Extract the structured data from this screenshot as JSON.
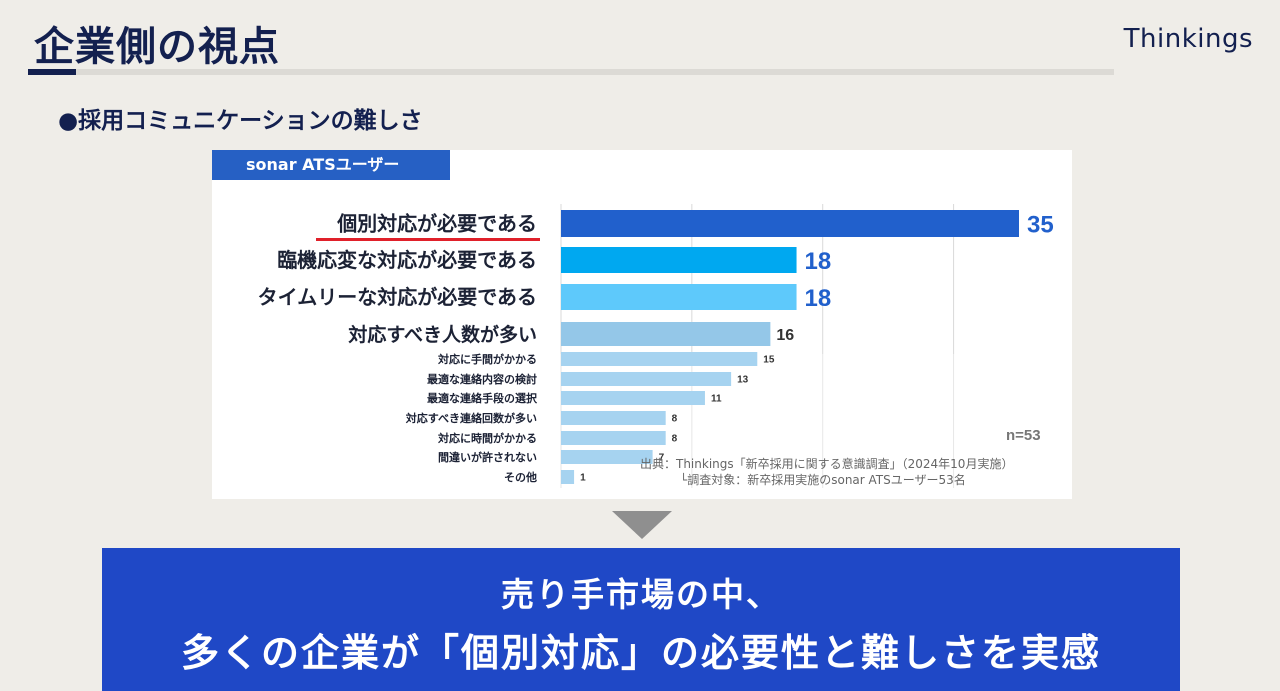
{
  "header": {
    "title": "企業側の視点",
    "brand": "Thinkings"
  },
  "section": {
    "subtitle": "●採用コミュニケーションの難しさ"
  },
  "chart_panel": {
    "tag": "sonar ATSユーザー",
    "sample_size": "n=53",
    "source_line1": "出典：Thinkings「新卒採用に関する意識調査」（2024年10月実施）",
    "source_line2": "└調査対象：新卒採用実施のsonar ATSユーザー53名"
  },
  "chart_data": {
    "type": "bar",
    "orientation": "horizontal",
    "categories": [
      "個別対応が必要である",
      "臨機応変な対応が必要である",
      "タイムリーな対応が必要である",
      "対応すべき人数が多い",
      "対応に手間がかかる",
      "最適な連絡内容の検討",
      "最適な連絡手段の選択",
      "対応すべき連絡回数が多い",
      "対応に時間がかかる",
      "間違いが許されない",
      "その他"
    ],
    "values": [
      35,
      18,
      18,
      16,
      15,
      13,
      11,
      8,
      8,
      7,
      1
    ],
    "xlim": [
      0,
      40
    ],
    "grid": true,
    "highlight_category": "個別対応が必要である",
    "colors": {
      "top1": "#2160cc",
      "top2": "#00a8f0",
      "top3": "#5ec9fb",
      "top4": "#94c7e8",
      "rest": "#a6d3f0",
      "underline": "#e0202a",
      "value_major": "#2160cc",
      "value_minor": "#333333"
    }
  },
  "conclusion": {
    "line1": "売り手市場の中、",
    "line2": "多くの企業が「個別対応」の必要性と難しさを実感"
  }
}
